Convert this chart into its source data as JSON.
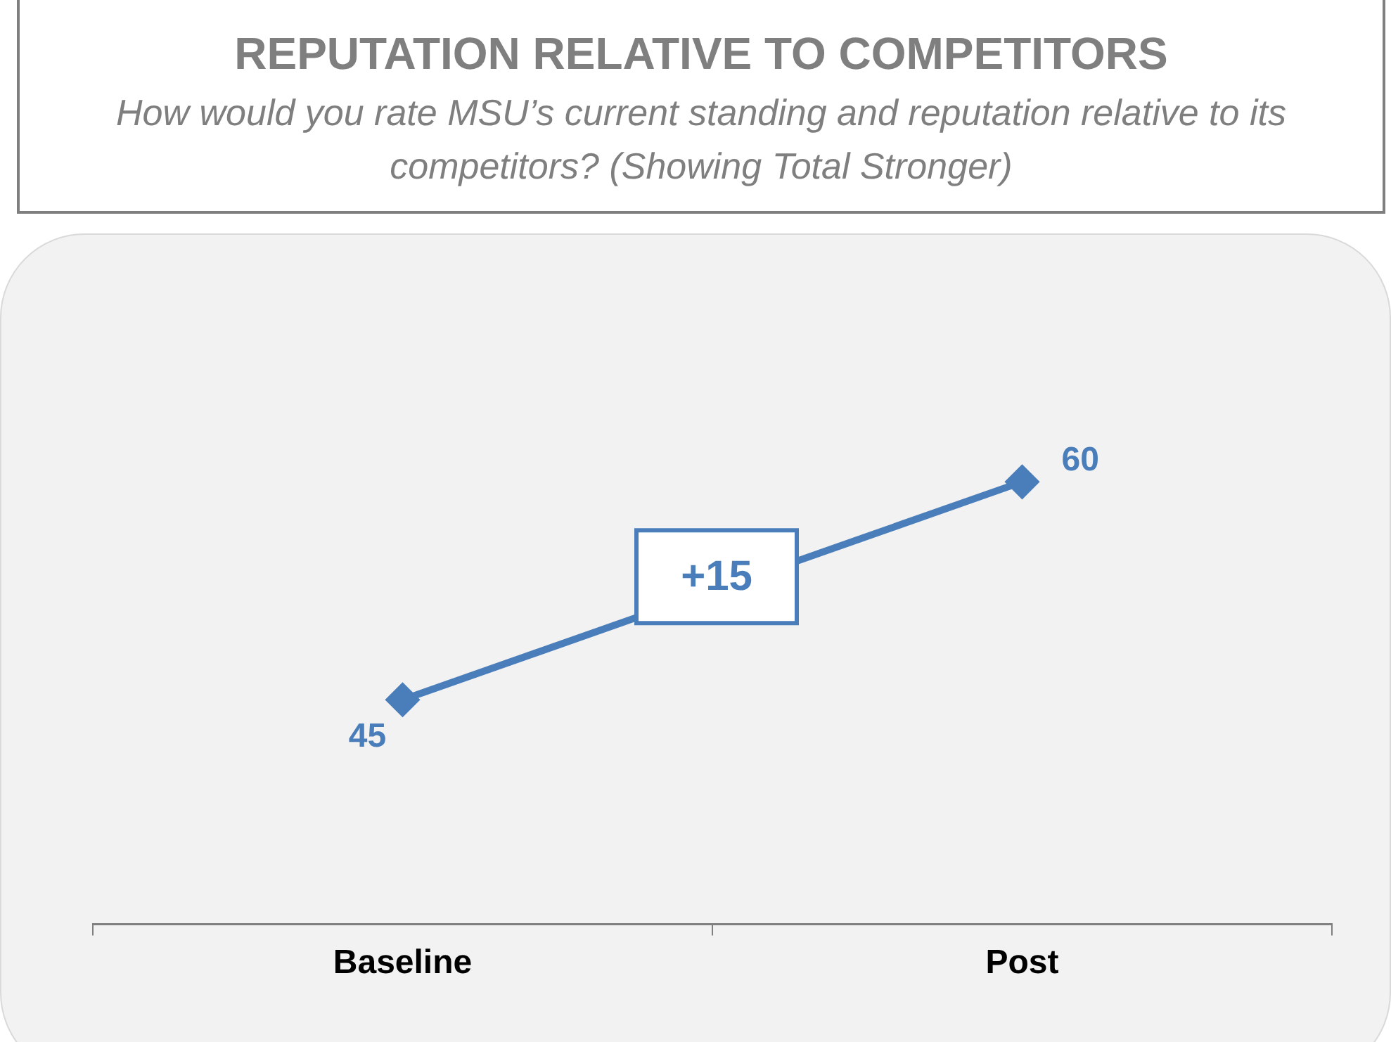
{
  "chart_data": {
    "type": "line",
    "title": "REPUTATION RELATIVE TO COMPETITORS",
    "subtitle": "How would you rate MSU’s current standing and reputation relative to its competitors? (Showing Total Stronger)",
    "categories": [
      "Baseline",
      "Post"
    ],
    "series": [
      {
        "color": "#4a7ebb",
        "values": [
          45,
          60
        ]
      }
    ],
    "data_labels": true,
    "marker": "diamond",
    "line_style": "solid",
    "legend": false,
    "annotations": [
      "+15"
    ]
  }
}
